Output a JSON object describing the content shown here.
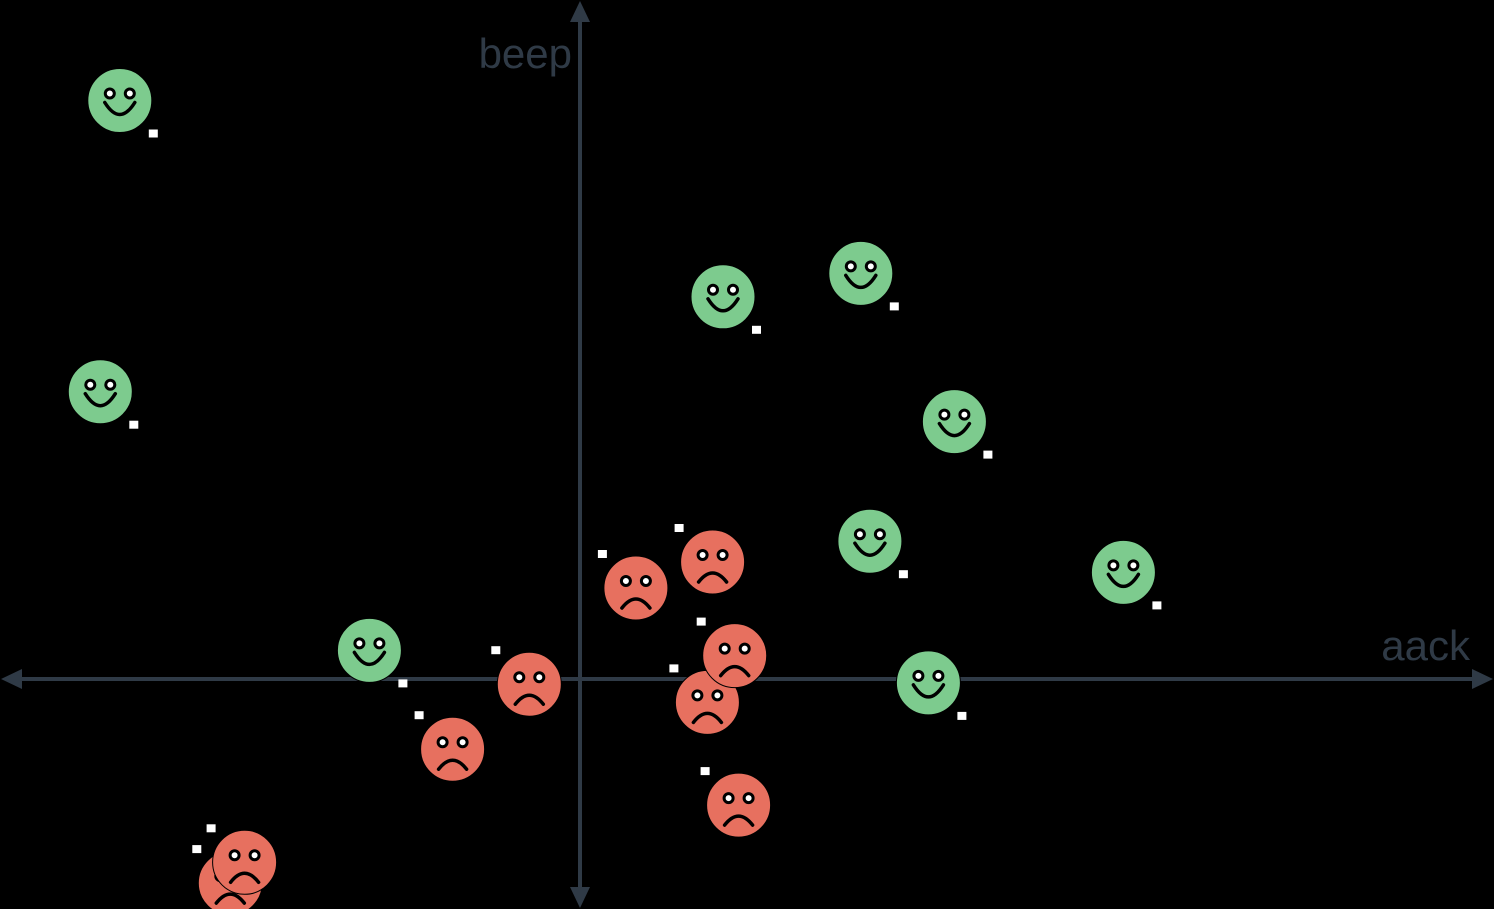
{
  "axes": {
    "x_label": "aack",
    "y_label": "beep",
    "color": "#2f3a46"
  },
  "colors": {
    "happy": "#7dcb8e",
    "sad": "#e7705f",
    "features": "#000000",
    "tag": "#ffffff"
  },
  "chart_data": {
    "type": "scatter",
    "series": [
      {
        "name": "",
        "marker": "happy-face-icon",
        "x": [
          -3.54,
          1.1,
          -3.69,
          2.16,
          2.88,
          2.23,
          4.18,
          2.68,
          -1.62
        ],
        "y": [
          4.45,
          2.94,
          2.21,
          3.12,
          1.98,
          1.06,
          0.82,
          -0.03,
          0.22
        ]
      },
      {
        "name": "",
        "marker": "sad-face-icon",
        "x": [
          -0.98,
          0.43,
          1.02,
          -2.69,
          0.98,
          1.22,
          -2.58,
          -0.39,
          1.19
        ],
        "y": [
          -0.54,
          0.7,
          0.9,
          -1.57,
          -0.18,
          -0.97,
          -1.41,
          -0.04,
          0.18
        ]
      }
    ]
  }
}
